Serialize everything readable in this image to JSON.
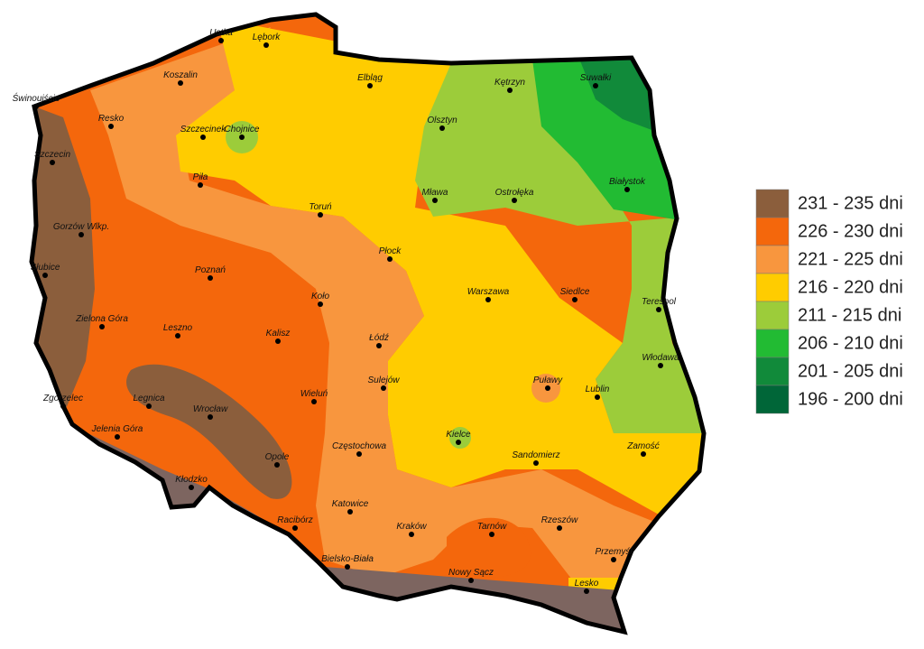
{
  "legend": {
    "items": [
      {
        "label": "231 - 235 dni",
        "color": "#8b5e3c"
      },
      {
        "label": "226 - 230 dni",
        "color": "#f4670c"
      },
      {
        "label": "221 - 225 dni",
        "color": "#f8963e"
      },
      {
        "label": "216 - 220 dni",
        "color": "#ffcc00"
      },
      {
        "label": "211 - 215 dni",
        "color": "#9ccc3a"
      },
      {
        "label": "206 - 210 dni",
        "color": "#22bb33"
      },
      {
        "label": "201 - 205 dni",
        "color": "#118a3a"
      },
      {
        "label": "196 - 200 dni",
        "color": "#006638"
      }
    ]
  },
  "cities": [
    "Ustka",
    "Lębork",
    "Koszalin",
    "Świnoujście",
    "Resko",
    "Szczecinek",
    "Chojnice",
    "Elbląg",
    "Kętrzyn",
    "Suwałki",
    "Olsztyn",
    "Szczecin",
    "Piła",
    "Mława",
    "Ostrołęka",
    "Białystok",
    "Toruń",
    "Gorzów Wlkp.",
    "Słubice",
    "Płock",
    "Poznań",
    "Koło",
    "Warszawa",
    "Siedlce",
    "Terespol",
    "Zielona Góra",
    "Leszno",
    "Kalisz",
    "Łódź",
    "Włodawa",
    "Puławy",
    "Sulejów",
    "Lublin",
    "Zgorzelec",
    "Legnica",
    "Wrocław",
    "Wieluń",
    "Jelenia Góra",
    "Kielce",
    "Częstochowa",
    "Sandomierz",
    "Zamość",
    "Opole",
    "Kłodzko",
    "Katowice",
    "Racibórz",
    "Kraków",
    "Tarnów",
    "Rzeszów",
    "Przemyśl",
    "Bielsko-Biała",
    "Nowy Sącz",
    "Lesko"
  ]
}
